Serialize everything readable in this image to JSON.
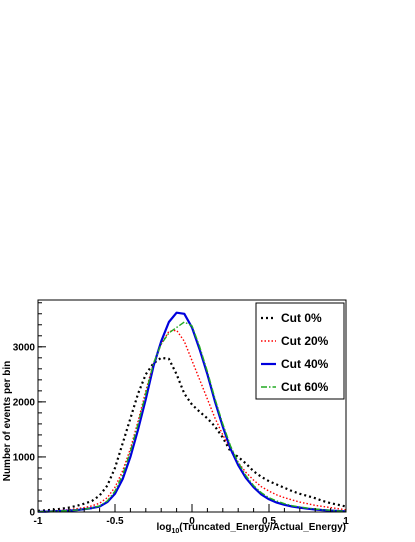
{
  "chart_data": {
    "type": "line",
    "xlabel_main": "log",
    "xlabel_sub": "10",
    "xlabel_rest": "(Truncated_Energy/Actual_Energy)",
    "ylabel": "Number of events per bin",
    "xlim": [
      -1,
      1
    ],
    "ylim": [
      0,
      3850
    ],
    "x_ticks": [
      {
        "value": -1,
        "label": "-1"
      },
      {
        "value": -0.5,
        "label": "-0.5"
      },
      {
        "value": 0,
        "label": "0"
      },
      {
        "value": 0.5,
        "label": "0.5"
      },
      {
        "value": 1,
        "label": "1"
      }
    ],
    "y_ticks": [
      {
        "value": 0,
        "label": "0"
      },
      {
        "value": 1000,
        "label": "1000"
      },
      {
        "value": 2000,
        "label": "2000"
      },
      {
        "value": 3000,
        "label": "3000"
      }
    ],
    "legend_position": "top-right",
    "x": [
      -1.0,
      -0.95,
      -0.9,
      -0.85,
      -0.8,
      -0.75,
      -0.7,
      -0.65,
      -0.6,
      -0.55,
      -0.5,
      -0.45,
      -0.4,
      -0.35,
      -0.3,
      -0.25,
      -0.2,
      -0.15,
      -0.1,
      -0.05,
      0.0,
      0.05,
      0.1,
      0.15,
      0.2,
      0.25,
      0.3,
      0.35,
      0.4,
      0.45,
      0.5,
      0.55,
      0.6,
      0.65,
      0.7,
      0.75,
      0.8,
      0.85,
      0.9,
      0.95,
      1.0
    ],
    "series": [
      {
        "name": "Cut 0%",
        "color": "#000000",
        "dash": "2,3",
        "width": 2.2,
        "values": [
          20,
          30,
          40,
          60,
          80,
          110,
          150,
          200,
          300,
          480,
          800,
          1250,
          1700,
          2150,
          2500,
          2700,
          2800,
          2780,
          2500,
          2150,
          1950,
          1820,
          1700,
          1550,
          1350,
          1100,
          1000,
          880,
          740,
          640,
          560,
          500,
          440,
          380,
          330,
          290,
          250,
          200,
          160,
          130,
          100
        ]
      },
      {
        "name": "Cut 20%",
        "color": "#ff0000",
        "dash": "1.5,2",
        "width": 1.4,
        "values": [
          10,
          15,
          20,
          30,
          40,
          60,
          80,
          110,
          160,
          260,
          450,
          750,
          1150,
          1650,
          2200,
          2700,
          3050,
          3280,
          3300,
          3100,
          2750,
          2400,
          2050,
          1700,
          1400,
          1150,
          900,
          720,
          580,
          460,
          380,
          310,
          260,
          220,
          180,
          150,
          120,
          100,
          80,
          60,
          40
        ]
      },
      {
        "name": "Cut 40%",
        "color": "#0000dd",
        "dash": "",
        "width": 2.2,
        "values": [
          5,
          8,
          12,
          18,
          25,
          35,
          50,
          70,
          100,
          180,
          330,
          600,
          1000,
          1500,
          2050,
          2650,
          3100,
          3450,
          3620,
          3600,
          3350,
          2950,
          2500,
          2000,
          1550,
          1150,
          850,
          620,
          450,
          320,
          230,
          170,
          130,
          100,
          80,
          60,
          45,
          35,
          25,
          18,
          10
        ]
      },
      {
        "name": "Cut 60%",
        "color": "#22aa22",
        "dash": "6,2,1.5,2",
        "width": 1.4,
        "values": [
          5,
          8,
          12,
          18,
          25,
          35,
          50,
          75,
          110,
          200,
          380,
          680,
          1100,
          1600,
          2150,
          2700,
          3050,
          3250,
          3350,
          3450,
          3380,
          3000,
          2550,
          2050,
          1600,
          1200,
          900,
          660,
          480,
          350,
          260,
          200,
          150,
          115,
          90,
          70,
          55,
          40,
          30,
          20,
          12
        ]
      }
    ]
  }
}
